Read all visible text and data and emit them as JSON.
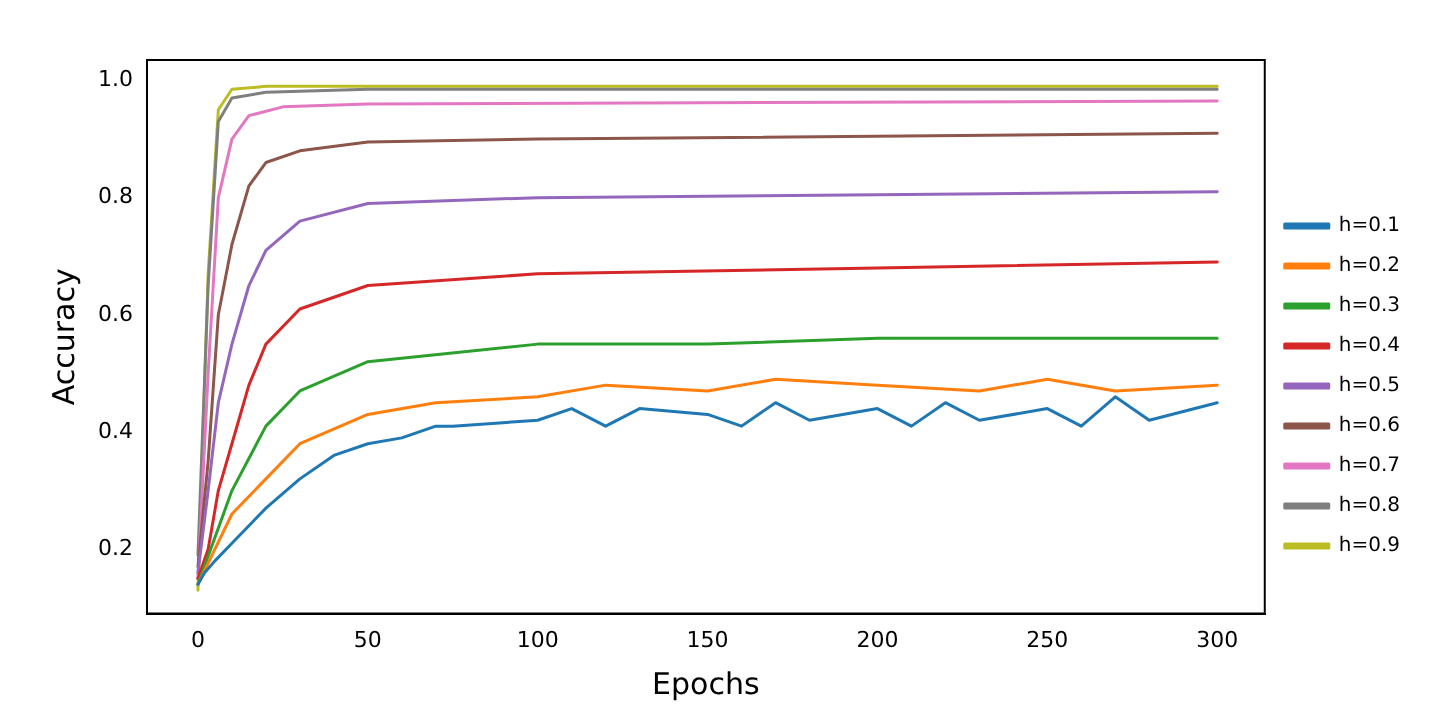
{
  "chart_data": {
    "type": "line",
    "xlabel": "Epochs",
    "ylabel": "Accuracy",
    "xlim": [
      -15,
      314
    ],
    "xticks": [
      0,
      50,
      100,
      150,
      200,
      250,
      300
    ],
    "ylim": [
      0.09,
      1.035
    ],
    "yticks": [
      {
        "value": 0.2,
        "label": "0.2"
      },
      {
        "value": 0.4,
        "label": "0.4"
      },
      {
        "value": 0.6,
        "label": "0.6"
      },
      {
        "value": 0.8,
        "label": "0.8"
      },
      {
        "value": 1.0,
        "label": "1.0"
      }
    ],
    "grid": false,
    "legend": "right",
    "marker": "none",
    "line_style": "solid",
    "series": [
      {
        "name": "h=0.1",
        "color": "#1f77b4",
        "x": [
          0,
          2,
          5,
          10,
          15,
          20,
          30,
          40,
          50,
          60,
          70,
          75,
          100,
          110,
          120,
          130,
          150,
          160,
          170,
          180,
          200,
          210,
          220,
          230,
          250,
          260,
          270,
          280,
          300
        ],
        "values": [
          0.14,
          0.16,
          0.18,
          0.21,
          0.24,
          0.27,
          0.32,
          0.36,
          0.38,
          0.39,
          0.41,
          0.41,
          0.42,
          0.44,
          0.41,
          0.44,
          0.43,
          0.41,
          0.45,
          0.42,
          0.44,
          0.41,
          0.45,
          0.42,
          0.44,
          0.41,
          0.46,
          0.42,
          0.45
        ]
      },
      {
        "name": "h=0.2",
        "color": "#ff7f0e",
        "x": [
          0,
          5,
          10,
          20,
          30,
          50,
          70,
          100,
          120,
          150,
          170,
          200,
          230,
          250,
          270,
          300
        ],
        "values": [
          0.14,
          0.2,
          0.26,
          0.32,
          0.38,
          0.43,
          0.45,
          0.46,
          0.48,
          0.47,
          0.49,
          0.48,
          0.47,
          0.49,
          0.47,
          0.48
        ]
      },
      {
        "name": "h=0.3",
        "color": "#2ca02c",
        "x": [
          0,
          5,
          10,
          20,
          30,
          50,
          100,
          150,
          200,
          250,
          300
        ],
        "values": [
          0.14,
          0.22,
          0.3,
          0.41,
          0.47,
          0.52,
          0.55,
          0.55,
          0.56,
          0.56,
          0.56
        ]
      },
      {
        "name": "h=0.4",
        "color": "#d62728",
        "x": [
          0,
          3,
          6,
          10,
          15,
          20,
          30,
          50,
          100,
          200,
          300
        ],
        "values": [
          0.15,
          0.2,
          0.3,
          0.38,
          0.48,
          0.55,
          0.61,
          0.65,
          0.67,
          0.68,
          0.69
        ]
      },
      {
        "name": "h=0.5",
        "color": "#9467bd",
        "x": [
          0,
          3,
          6,
          10,
          15,
          20,
          30,
          50,
          100,
          200,
          300
        ],
        "values": [
          0.16,
          0.3,
          0.45,
          0.55,
          0.65,
          0.71,
          0.76,
          0.79,
          0.8,
          0.805,
          0.81
        ]
      },
      {
        "name": "h=0.6",
        "color": "#8c564b",
        "x": [
          0,
          3,
          6,
          10,
          15,
          20,
          30,
          50,
          100,
          300
        ],
        "values": [
          0.17,
          0.35,
          0.6,
          0.72,
          0.82,
          0.86,
          0.88,
          0.895,
          0.9,
          0.91
        ]
      },
      {
        "name": "h=0.7",
        "color": "#e377c2",
        "x": [
          0,
          3,
          6,
          10,
          15,
          25,
          50,
          300
        ],
        "values": [
          0.15,
          0.5,
          0.8,
          0.9,
          0.94,
          0.955,
          0.96,
          0.965
        ]
      },
      {
        "name": "h=0.8",
        "color": "#7f7f7f",
        "x": [
          0,
          3,
          6,
          10,
          20,
          50,
          300
        ],
        "values": [
          0.19,
          0.65,
          0.93,
          0.97,
          0.98,
          0.985,
          0.985
        ]
      },
      {
        "name": "h=0.9",
        "color": "#bcbd22",
        "x": [
          0,
          3,
          6,
          10,
          20,
          300
        ],
        "values": [
          0.13,
          0.67,
          0.95,
          0.985,
          0.99,
          0.99
        ]
      }
    ]
  }
}
